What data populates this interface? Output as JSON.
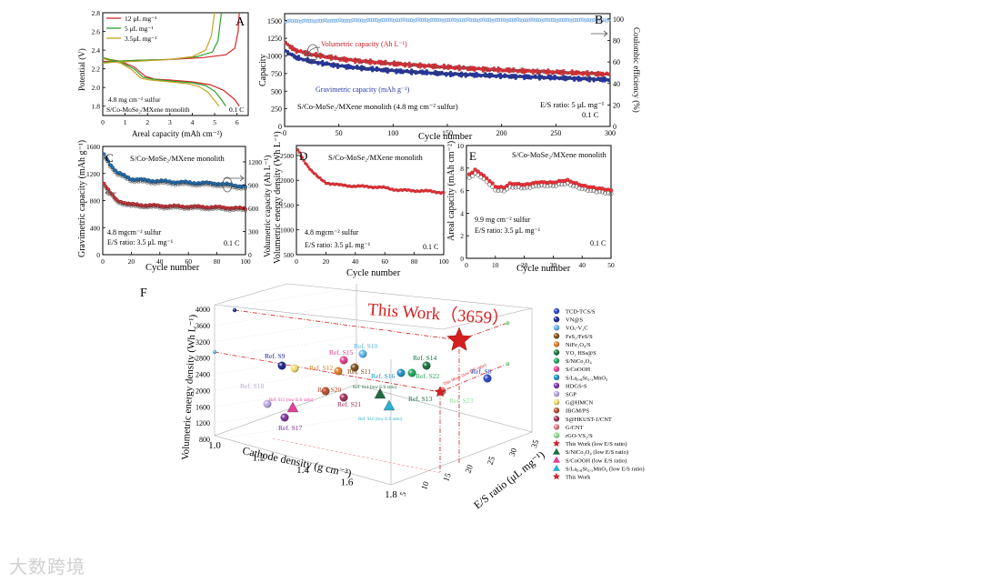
{
  "watermark": "大数跨境",
  "chart_data": [
    {
      "id": "A",
      "type": "line",
      "panel_label": "A",
      "xlabel": "Areal capacity (mAh cm⁻²)",
      "ylabel": "Potential (V)",
      "xlim": [
        0,
        6.5
      ],
      "ylim": [
        1.7,
        2.8
      ],
      "xticks": [
        "0",
        "1",
        "2",
        "3",
        "4",
        "5",
        "6"
      ],
      "yticks": [
        "1.8",
        "2.0",
        "2.2",
        "2.4",
        "2.6",
        "2.8"
      ],
      "legend": [
        "12 μL mg⁻¹",
        "5 μL mg⁻¹",
        "3.5μL mg⁻¹"
      ],
      "notes": [
        "4.8 mg cm⁻² sulfur",
        "S/Co-MoSe₂/MXene monolith",
        "0.1 C"
      ],
      "series_colors": [
        "#d62728",
        "#2ca02c",
        "#c9a227"
      ],
      "discharge": [
        {
          "name": "12 μL mg⁻¹",
          "x": [
            0,
            0.3,
            0.8,
            1.4,
            1.9,
            2.3,
            3,
            4,
            4.8,
            5.4,
            5.9,
            6.1
          ],
          "y": [
            2.32,
            2.3,
            2.28,
            2.22,
            2.12,
            2.09,
            2.08,
            2.06,
            2.03,
            1.97,
            1.87,
            1.8
          ]
        },
        {
          "name": "5 μL mg⁻¹",
          "x": [
            0,
            0.3,
            0.8,
            1.4,
            1.8,
            2.2,
            3,
            4,
            4.6,
            5,
            5.3,
            5.5
          ],
          "y": [
            2.32,
            2.3,
            2.27,
            2.2,
            2.11,
            2.09,
            2.07,
            2.05,
            2.02,
            1.96,
            1.87,
            1.8
          ]
        },
        {
          "name": "3.5μL mg⁻¹",
          "x": [
            0,
            0.3,
            0.8,
            1.3,
            1.7,
            2.1,
            3,
            3.8,
            4.3,
            4.7,
            5,
            5.2
          ],
          "y": [
            2.31,
            2.29,
            2.26,
            2.19,
            2.1,
            2.08,
            2.06,
            2.04,
            2.01,
            1.95,
            1.86,
            1.8
          ]
        }
      ],
      "charge": [
        {
          "name": "12 μL mg⁻¹",
          "x": [
            0,
            0.5,
            1.5,
            3,
            4.5,
            5.5,
            5.9,
            6.05,
            6.1
          ],
          "y": [
            2.28,
            2.28,
            2.29,
            2.3,
            2.32,
            2.35,
            2.42,
            2.6,
            2.8
          ]
        },
        {
          "name": "5 μL mg⁻¹",
          "x": [
            0,
            0.5,
            1.5,
            3,
            4.2,
            4.9,
            5.15,
            5.25,
            5.3
          ],
          "y": [
            2.27,
            2.28,
            2.29,
            2.3,
            2.33,
            2.38,
            2.5,
            2.7,
            2.8
          ]
        },
        {
          "name": "3.5μL mg⁻¹",
          "x": [
            0,
            0.5,
            1.5,
            3,
            4,
            4.6,
            4.85,
            4.95,
            5.0
          ],
          "y": [
            2.26,
            2.27,
            2.28,
            2.3,
            2.33,
            2.4,
            2.55,
            2.72,
            2.8
          ]
        }
      ]
    },
    {
      "id": "B",
      "type": "scatter",
      "panel_label": "B",
      "xlabel": "Cycle number",
      "ylabel": "Capacity",
      "y2label": "Coulombic efficiency (%)",
      "xlim": [
        0,
        300
      ],
      "ylim": [
        0,
        1600
      ],
      "y2lim": [
        0,
        105
      ],
      "xticks": [
        "0",
        "50",
        "100",
        "150",
        "200",
        "250",
        "300"
      ],
      "yticks": [
        "0",
        "250",
        "500",
        "750",
        "1000",
        "1250",
        "1500"
      ],
      "y2ticks": [
        "0",
        "20",
        "40",
        "60",
        "80",
        "100"
      ],
      "annotations": [
        "Volumetric capacity (Ah L⁻¹)",
        "Gravimetric capacity (mAh g⁻¹)",
        "S/Co-MoSe₂/MXene monolith (4.8 mg cm⁻² sulfur)",
        "E/S ratio: 5 μL mg⁻¹",
        "0.1 C"
      ],
      "series": [
        {
          "name": "Volumetric capacity",
          "color": "#e8323a",
          "x": [
            1,
            10,
            25,
            50,
            75,
            100,
            150,
            200,
            250,
            300
          ],
          "y": [
            1180,
            1080,
            1020,
            960,
            920,
            890,
            840,
            800,
            770,
            740
          ]
        },
        {
          "name": "Gravimetric capacity",
          "color": "#2537a8",
          "x": [
            1,
            10,
            25,
            50,
            75,
            100,
            150,
            200,
            250,
            300
          ],
          "y": [
            1070,
            980,
            920,
            860,
            820,
            790,
            745,
            715,
            690,
            660
          ]
        },
        {
          "name": "Coulombic efficiency",
          "color": "#6aa5e0",
          "axis": "right",
          "x": [
            1,
            50,
            100,
            150,
            200,
            250,
            300
          ],
          "y": [
            98,
            98.5,
            99,
            99,
            99,
            99,
            99
          ]
        }
      ]
    },
    {
      "id": "C",
      "type": "scatter",
      "panel_label": "C",
      "xlabel": "Cycle number",
      "ylabel": "Gravimetric capacity (mAh g⁻¹)",
      "y2label": "Volumetric capacity (Ah L⁻¹)",
      "xlim": [
        0,
        100
      ],
      "ylim": [
        0,
        1600
      ],
      "y2lim": [
        0,
        1400
      ],
      "xticks": [
        "0",
        "20",
        "40",
        "60",
        "80",
        "100"
      ],
      "yticks": [
        "0",
        "400",
        "800",
        "1200",
        "1600"
      ],
      "y2ticks": [
        "0",
        "300",
        "600",
        "900",
        "1200"
      ],
      "notes": [
        "S/Co-MoSe₂/MXene monolith",
        "4.8 mgcm⁻² sulfur",
        "E/S ratio: 3.5 μL mg⁻¹",
        "0.1 C"
      ],
      "series": [
        {
          "name": "Volumetric",
          "color": "#1f77c4",
          "axis": "right",
          "x": [
            1,
            5,
            10,
            20,
            30,
            40,
            60,
            80,
            100
          ],
          "y": [
            1290,
            1180,
            1060,
            980,
            960,
            950,
            930,
            920,
            880
          ]
        },
        {
          "name": "Gravimetric",
          "color": "#e8323a",
          "x": [
            1,
            5,
            10,
            20,
            30,
            40,
            60,
            80,
            100
          ],
          "y": [
            1050,
            920,
            800,
            740,
            730,
            720,
            710,
            700,
            680
          ]
        }
      ]
    },
    {
      "id": "D",
      "type": "scatter",
      "panel_label": "D",
      "xlabel": "Cycle number",
      "ylabel": "Volumetric energy density (Wh L⁻¹)",
      "xlim": [
        0,
        100
      ],
      "ylim": [
        500,
        2700
      ],
      "xticks": [
        "0",
        "20",
        "40",
        "60",
        "80",
        "100"
      ],
      "yticks": [
        "500",
        "1000",
        "1500",
        "2000",
        "2500"
      ],
      "notes": [
        "S/Co-MoSe₂/MXene monolith",
        "4.8 mgcm⁻² sulfur",
        "E/S ratio: 3.5 μL mg⁻¹",
        "0.1 C"
      ],
      "series": [
        {
          "name": "Energy density",
          "color": "#e8323a",
          "x": [
            1,
            5,
            10,
            15,
            20,
            30,
            40,
            50,
            60,
            65,
            70,
            80,
            90,
            100
          ],
          "y": [
            2600,
            2400,
            2200,
            2050,
            1950,
            1900,
            1880,
            1870,
            1850,
            1820,
            1800,
            1790,
            1780,
            1750
          ]
        }
      ]
    },
    {
      "id": "E",
      "type": "scatter",
      "panel_label": "E",
      "xlabel": "Cycle number",
      "ylabel": "Areal capacity (mAh cm⁻²)",
      "xlim": [
        0,
        50
      ],
      "ylim": [
        0,
        10
      ],
      "xticks": [
        "0",
        "10",
        "20",
        "30",
        "40",
        "50"
      ],
      "yticks": [
        "0",
        "2",
        "4",
        "6",
        "8",
        "10"
      ],
      "notes": [
        "S/Co-MoSe₂/MXene monolith",
        "9.9 mg cm⁻² sulfur",
        "E/S ratio: 3.5 μL mg⁻¹",
        "0.1 C"
      ],
      "series": [
        {
          "name": "Areal capacity",
          "color": "#e8323a",
          "x": [
            1,
            3,
            5,
            8,
            10,
            13,
            15,
            20,
            25,
            30,
            35,
            40,
            45,
            50
          ],
          "y": [
            7.4,
            7.8,
            7.5,
            6.9,
            6.4,
            6.3,
            6.6,
            6.5,
            6.8,
            6.7,
            6.9,
            6.5,
            6.2,
            6.0
          ]
        }
      ]
    },
    {
      "id": "F",
      "type": "scatter3d",
      "panel_label": "F",
      "xlabel": "Cathode density (g cm⁻³)",
      "ylabel": "E/S ratio (μL mg⁻¹)",
      "zlabel": "Volumetric energy density (Wh L⁻¹)",
      "xticks": [
        "1.0",
        "1.2",
        "1.4",
        "1.6",
        "1.8"
      ],
      "yticks": [
        "5",
        "10",
        "15",
        "20",
        "25",
        "30",
        "35"
      ],
      "zticks": [
        "800",
        "1200",
        "1600",
        "2000",
        "2400",
        "2800",
        "3200",
        "3600",
        "4000"
      ],
      "headline": "This Work（3659）",
      "labels": [
        "Ref. S10",
        "Ref. S15",
        "Ref. S9",
        "Ref. S12",
        "Ref. S11",
        "Ref. S14",
        "Ref. S16",
        "Ref. S22",
        "Ref. S8",
        "Ref. S18",
        "Ref. S20",
        "Ref. S21",
        "Ref. S13",
        "Ref. S23",
        "Ref. S17",
        "Ref. S14 (low E/S ratio)",
        "Ref. S15 (low E/S ratio)",
        "Ref. S16 (low E/S ratio)",
        "This Work (low E/S ratio)"
      ],
      "legend": [
        {
          "label": "TCD-TCS/S",
          "color": "#2441c8",
          "marker": "sphere"
        },
        {
          "label": "VN@S",
          "color": "#0e1f8a",
          "marker": "sphere"
        },
        {
          "label": "VOₓ-V₂C",
          "color": "#5ab4e8",
          "marker": "sphere"
        },
        {
          "label": "FeS₂/FeS/S",
          "color": "#7a4a12",
          "marker": "sphere"
        },
        {
          "label": "NiFe₂O₄/S",
          "color": "#e07b1e",
          "marker": "sphere"
        },
        {
          "label": "VO₂ HSs@S",
          "color": "#0f6e3a",
          "marker": "sphere"
        },
        {
          "label": "S/NiCo₂O₄",
          "color": "#1aa35a",
          "marker": "sphere"
        },
        {
          "label": "S/CoOOH",
          "color": "#e03c8a",
          "marker": "sphere"
        },
        {
          "label": "S/La₀.₈Sr₀.₂MnO₃",
          "color": "#1a8fbf",
          "marker": "sphere"
        },
        {
          "label": "HDGS-S",
          "color": "#7b2a9c",
          "marker": "sphere"
        },
        {
          "label": "SGP",
          "color": "#b9a7e6",
          "marker": "sphere"
        },
        {
          "label": "G@HMCN",
          "color": "#f2dc6a",
          "marker": "sphere"
        },
        {
          "label": "IBGM/PS",
          "color": "#b34a28",
          "marker": "sphere"
        },
        {
          "label": "S@HKUST-1/CNT",
          "color": "#9c2a55",
          "marker": "sphere"
        },
        {
          "label": "G/CNT",
          "color": "#e07a7a",
          "marker": "sphere"
        },
        {
          "label": "rGO-VS₂/S",
          "color": "#8fe08f",
          "marker": "sphere"
        },
        {
          "label": "This Work (low E/S ratio)",
          "color": "#d4201f",
          "marker": "star"
        },
        {
          "label": "S/NiCo₂O₄ (low E/S ratio)",
          "color": "#1e6b3f",
          "marker": "triangle"
        },
        {
          "label": "S/CoOOH (low E/S ratio)",
          "color": "#e23f9a",
          "marker": "triangle"
        },
        {
          "label": "S/La₀.₈Sr₀.₂MnO₃ (low E/S ratio)",
          "color": "#2ab0d0",
          "marker": "triangle"
        },
        {
          "label": "This Work",
          "color": "#d4201f",
          "marker": "star"
        }
      ]
    }
  ]
}
